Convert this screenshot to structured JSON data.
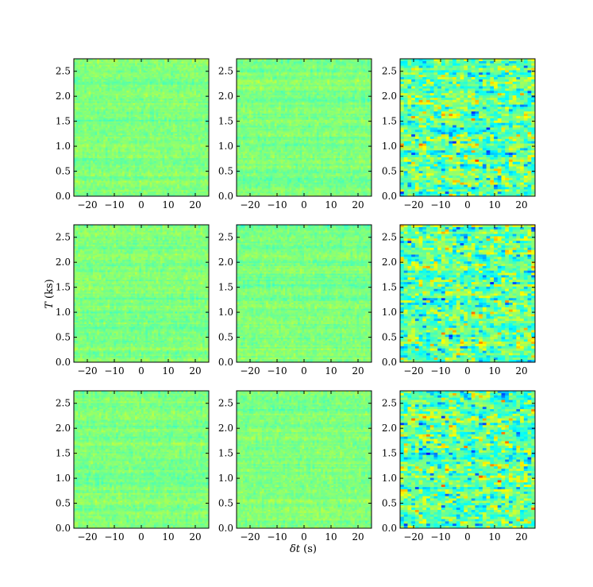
{
  "chart_data": {
    "type": "heatmap",
    "layout": "3x3 grid",
    "xlabel_symbol": "δt",
    "xlabel_unit": " (s)",
    "ylabel_symbol": "T",
    "ylabel_unit": " (ks)",
    "xlim": [
      -25,
      25
    ],
    "ylim": [
      0,
      2.75
    ],
    "x_ticks": [
      -20,
      -10,
      0,
      10,
      20
    ],
    "x_tick_labels": [
      "−20",
      "−10",
      "0",
      "10",
      "20"
    ],
    "y_ticks": [
      0,
      0.5,
      1.0,
      1.5,
      2.0,
      2.5
    ],
    "y_tick_labels": [
      "0.0",
      "0.5",
      "1.0",
      "1.5",
      "2.0",
      "2.5"
    ],
    "colormap": "jet",
    "colormap_stops": [
      "#00007f",
      "#0000ff",
      "#007fff",
      "#00ffff",
      "#7fff7f",
      "#ffff00",
      "#ff7f00",
      "#ff0000",
      "#7f0000"
    ],
    "grid": false,
    "legend": "none",
    "columns": [
      {
        "column": 1,
        "variance": "low",
        "dominant_colors": [
          "#7fff7f",
          "#40e0a0",
          "#c8f050"
        ]
      },
      {
        "column": 2,
        "variance": "low",
        "dominant_colors": [
          "#7fff7f",
          "#40e0a0",
          "#c8f050"
        ]
      },
      {
        "column": 3,
        "variance": "high",
        "dominant_colors": [
          "#00ffff",
          "#0000ff",
          "#ffff00",
          "#ff0000"
        ]
      }
    ]
  }
}
